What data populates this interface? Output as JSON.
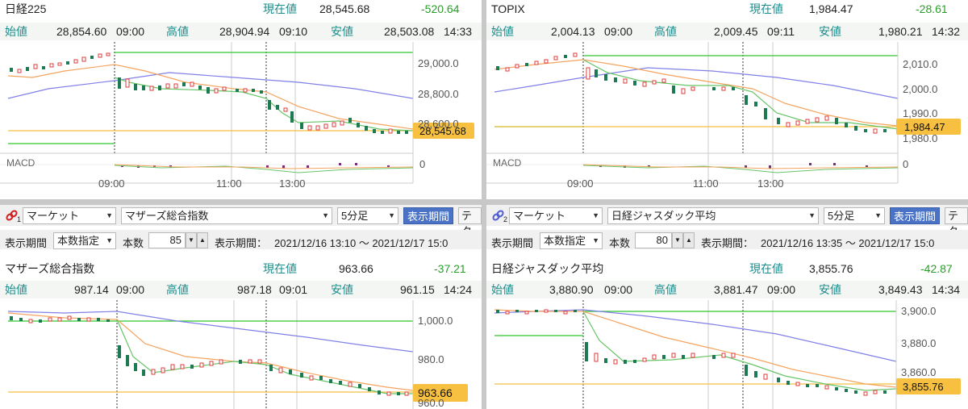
{
  "colors": {
    "candle_up": "#e23b3b",
    "candle_down": "#1d7a52",
    "ma_short": "#68c468",
    "ma_mid": "#f4a460",
    "ma_long": "#8080e8",
    "open_line": "#2ec82e",
    "current_line": "#f4c040",
    "price_badge": "#f7c040",
    "label_teal": "#1a8c8c",
    "change_negative": "#2a9c2a",
    "macd_bar": "#7a2a7a",
    "button_blue": "#4a73c8"
  },
  "labels": {
    "current": "現在値",
    "open": "始値",
    "high": "高値",
    "low": "安値",
    "macd": "MACD"
  },
  "panels": [
    {
      "name": "日経225",
      "current": "28,545.68",
      "change": "-520.64",
      "open": "28,854.60",
      "open_time": "09:00",
      "high": "28,904.94",
      "high_time": "09:10",
      "low": "28,503.08",
      "low_time": "14:33",
      "y_ticks": [
        "29,000.0",
        "28,800.0",
        "28,600.0"
      ],
      "badge": "28,545.68",
      "macd_zero": "0",
      "x_ticks": [
        "09:00",
        "11:00",
        "13:00"
      ]
    },
    {
      "name": "TOPIX",
      "current": "1,984.47",
      "change": "-28.61",
      "open": "2,004.13",
      "open_time": "09:00",
      "high": "2,009.45",
      "high_time": "09:11",
      "low": "1,980.21",
      "low_time": "14:32",
      "y_ticks": [
        "2,010.0",
        "2,000.0",
        "1,990.0",
        "1,980.0"
      ],
      "badge": "1,984.47",
      "macd_zero": "0",
      "x_ticks": [
        "09:00",
        "11:00",
        "13:00"
      ]
    },
    {
      "name": "マザーズ総合指数",
      "current": "963.66",
      "change": "-37.21",
      "open": "987.14",
      "open_time": "09:00",
      "high": "987.18",
      "high_time": "09:01",
      "low": "961.15",
      "low_time": "14:24",
      "y_ticks": [
        "1,000.0",
        "980.0",
        "960.0"
      ],
      "badge": "963.66",
      "toolbar": {
        "link_num": "1",
        "market": "マーケット",
        "index": "マザーズ総合指数",
        "interval": "5分足",
        "period_button": "表示期間",
        "tech_button": "テク",
        "period_label": "表示期間",
        "period_mode": "本数指定",
        "count_label": "本数",
        "count": "85",
        "range_label": "表示期間：",
        "range": "2021/12/16 13:10 ～ 2021/12/17 15:0"
      }
    },
    {
      "name": "日経ジャスダック平均",
      "current": "3,855.76",
      "change": "-42.87",
      "open": "3,880.90",
      "open_time": "09:00",
      "high": "3,881.47",
      "high_time": "09:00",
      "low": "3,849.43",
      "low_time": "14:34",
      "y_ticks": [
        "3,900.0",
        "3,880.0",
        "3,860.0"
      ],
      "badge": "3,855.76",
      "toolbar": {
        "link_num": "2",
        "market": "マーケット",
        "index": "日経ジャスダック平均",
        "interval": "5分足",
        "period_button": "表示期間",
        "tech_button": "テク",
        "period_label": "表示期間",
        "period_mode": "本数指定",
        "count_label": "本数",
        "count": "80",
        "range_label": "表示期間：",
        "range": "2021/12/16 13:35 ～ 2021/12/17 15:0"
      }
    }
  ]
}
